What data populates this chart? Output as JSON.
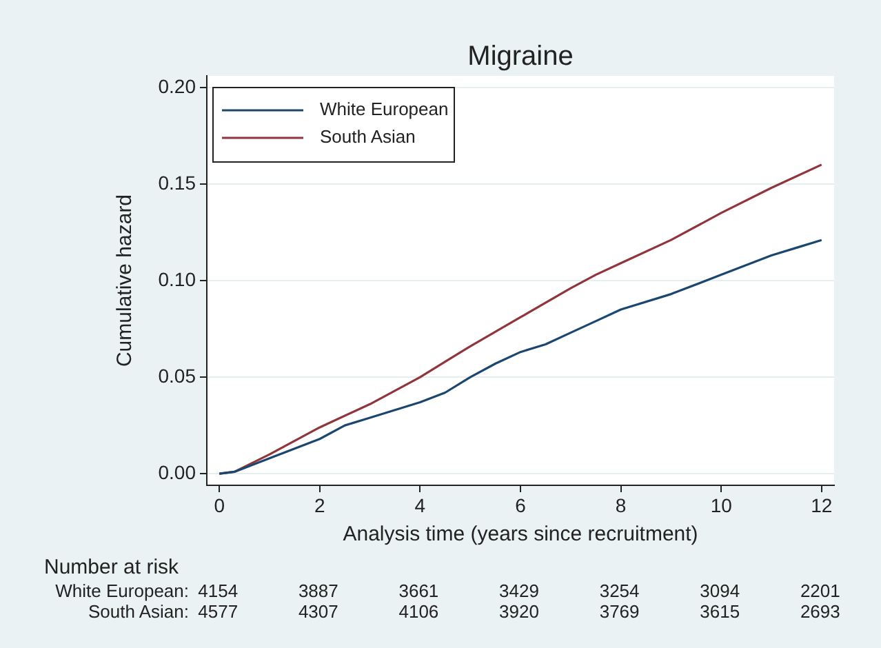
{
  "chart_data": {
    "type": "line",
    "title": "Migraine",
    "xlabel": "Analysis time (years since recruitment)",
    "ylabel": "Cumulative hazard",
    "xlim": [
      -0.25,
      12.25
    ],
    "xticks": [
      0,
      2,
      4,
      6,
      8,
      10,
      12
    ],
    "ylim": [
      -0.006,
      0.206
    ],
    "yticks": [
      {
        "value": 0,
        "label": "0.00"
      },
      {
        "value": 0.05,
        "label": "0.05"
      },
      {
        "value": 0.1,
        "label": "0.10"
      },
      {
        "value": 0.15,
        "label": "0.15"
      },
      {
        "value": 0.2,
        "label": "0.20"
      }
    ],
    "grid": "y",
    "legend": "top left",
    "marker": "none",
    "line_style": "solid",
    "series": [
      {
        "name": "White European",
        "color": "#1a476f",
        "x": [
          0,
          0.3,
          1,
          2,
          2.5,
          3,
          4,
          4.5,
          5,
          5.5,
          6,
          6.5,
          7,
          7.5,
          8,
          9,
          10,
          11,
          11.5,
          12
        ],
        "values": [
          0,
          0.001,
          0.008,
          0.018,
          0.025,
          0.029,
          0.037,
          0.042,
          0.05,
          0.057,
          0.063,
          0.067,
          0.073,
          0.079,
          0.085,
          0.093,
          0.103,
          0.113,
          0.117,
          0.121
        ]
      },
      {
        "name": "South Asian",
        "color": "#90353b",
        "x": [
          0,
          0.3,
          1,
          2,
          3,
          4,
          4.5,
          5,
          6,
          7,
          7.5,
          8,
          9,
          10,
          11,
          12
        ],
        "values": [
          0,
          0.001,
          0.01,
          0.024,
          0.036,
          0.05,
          0.058,
          0.066,
          0.081,
          0.096,
          0.103,
          0.109,
          0.121,
          0.135,
          0.148,
          0.16
        ]
      }
    ],
    "annotations": [
      "Number at risk",
      "White European:",
      "4154",
      "3887",
      "3661",
      "3429",
      "3254",
      "3094",
      "2201",
      "South Asian:",
      "4577",
      "4307",
      "4106",
      "3920",
      "3769",
      "3615",
      "2693"
    ]
  }
}
